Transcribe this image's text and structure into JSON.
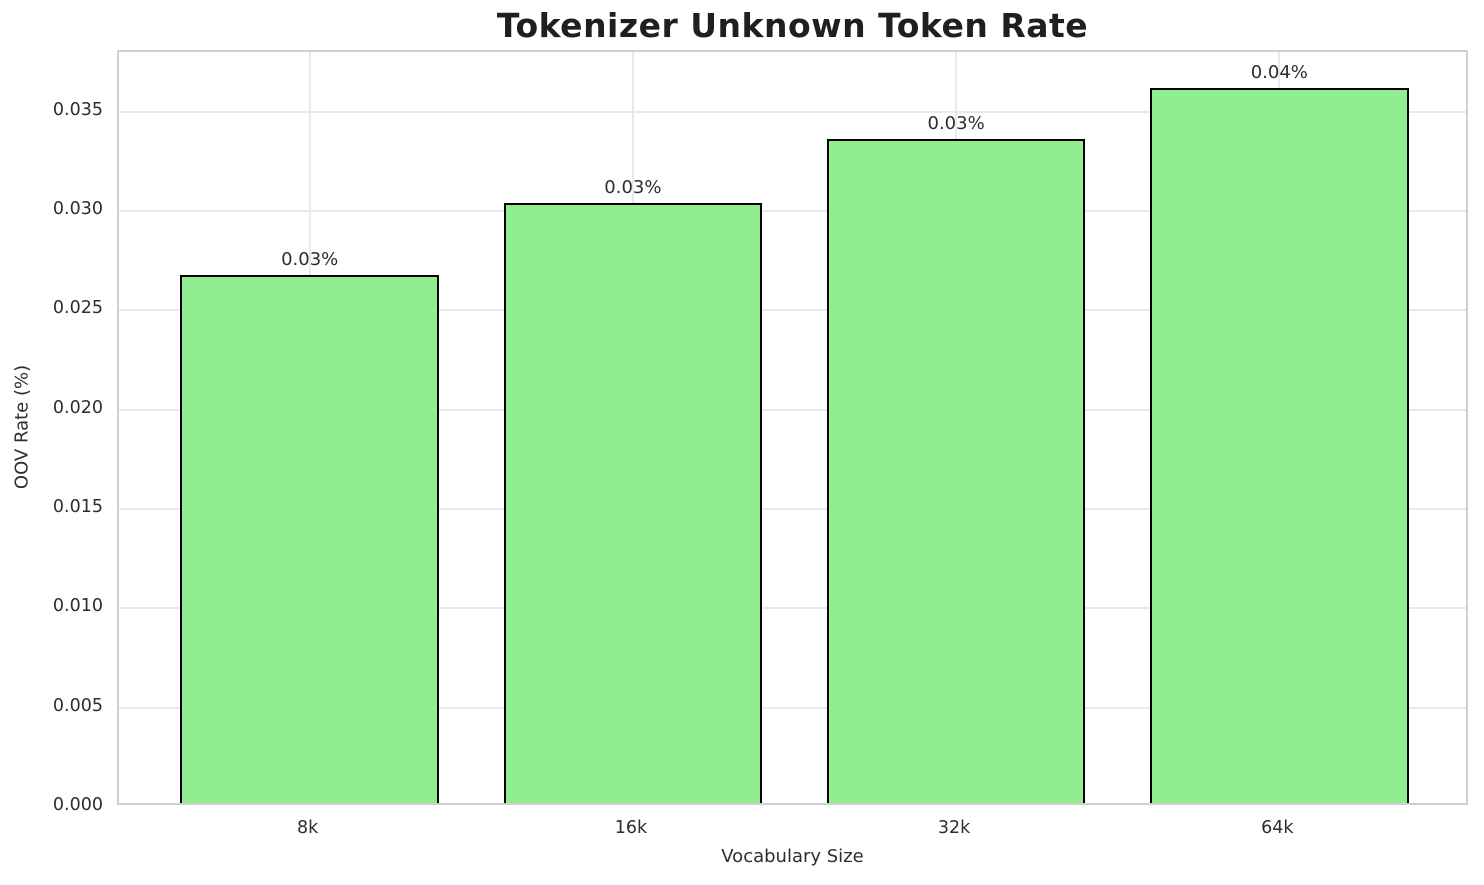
{
  "colors": {
    "bar_fill": "#90EE90",
    "bar_edge": "#000000",
    "grid": "#e9e9e9",
    "spine": "#cfcfcf",
    "title_text": "#1f1f1f",
    "tick_text": "#2e2e2e"
  },
  "chart_data": {
    "type": "bar",
    "title": "Tokenizer Unknown Token Rate",
    "xlabel": "Vocabulary Size",
    "ylabel": "OOV Rate (%)",
    "categories": [
      "8k",
      "16k",
      "32k",
      "64k"
    ],
    "values": [
      0.0266,
      0.0302,
      0.0334,
      0.036
    ],
    "bar_labels": [
      "0.03%",
      "0.03%",
      "0.03%",
      "0.04%"
    ],
    "ylim": [
      0,
      0.038
    ],
    "yticks": [
      0.0,
      0.005,
      0.01,
      0.015,
      0.02,
      0.025,
      0.03,
      0.035
    ],
    "ytick_labels": [
      "0.000",
      "0.005",
      "0.010",
      "0.015",
      "0.020",
      "0.025",
      "0.030",
      "0.035"
    ],
    "grid": true,
    "legend": "none",
    "bar_width_fraction": 0.8
  }
}
